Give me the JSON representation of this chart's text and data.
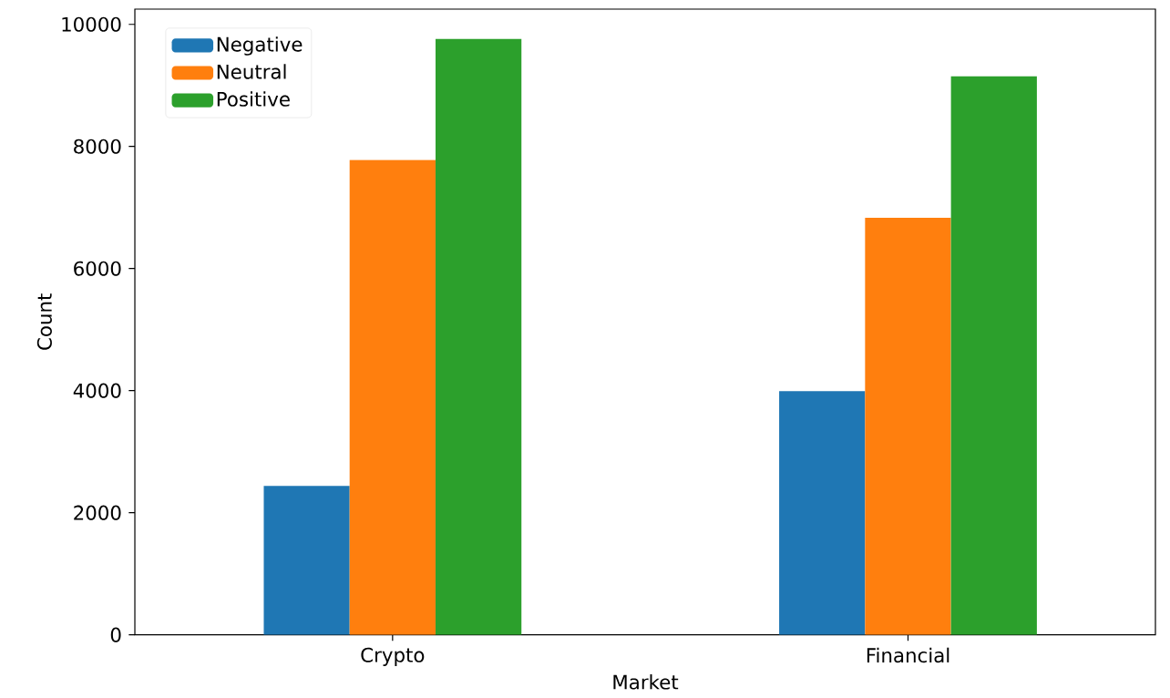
{
  "chart_data": {
    "type": "bar",
    "xlabel": "Market",
    "ylabel": "Count",
    "categories": [
      "Crypto",
      "Financial"
    ],
    "series": [
      {
        "name": "Negative",
        "color": "#1f77b4",
        "values": [
          2440,
          3990
        ]
      },
      {
        "name": "Neutral",
        "color": "#ff7f0e",
        "values": [
          7780,
          6830
        ]
      },
      {
        "name": "Positive",
        "color": "#2ca02c",
        "values": [
          9760,
          9150
        ]
      }
    ],
    "ylim": [
      0,
      10250
    ],
    "yticks": [
      0,
      2000,
      4000,
      6000,
      8000,
      10000
    ],
    "legend": "top left",
    "grid": false
  }
}
